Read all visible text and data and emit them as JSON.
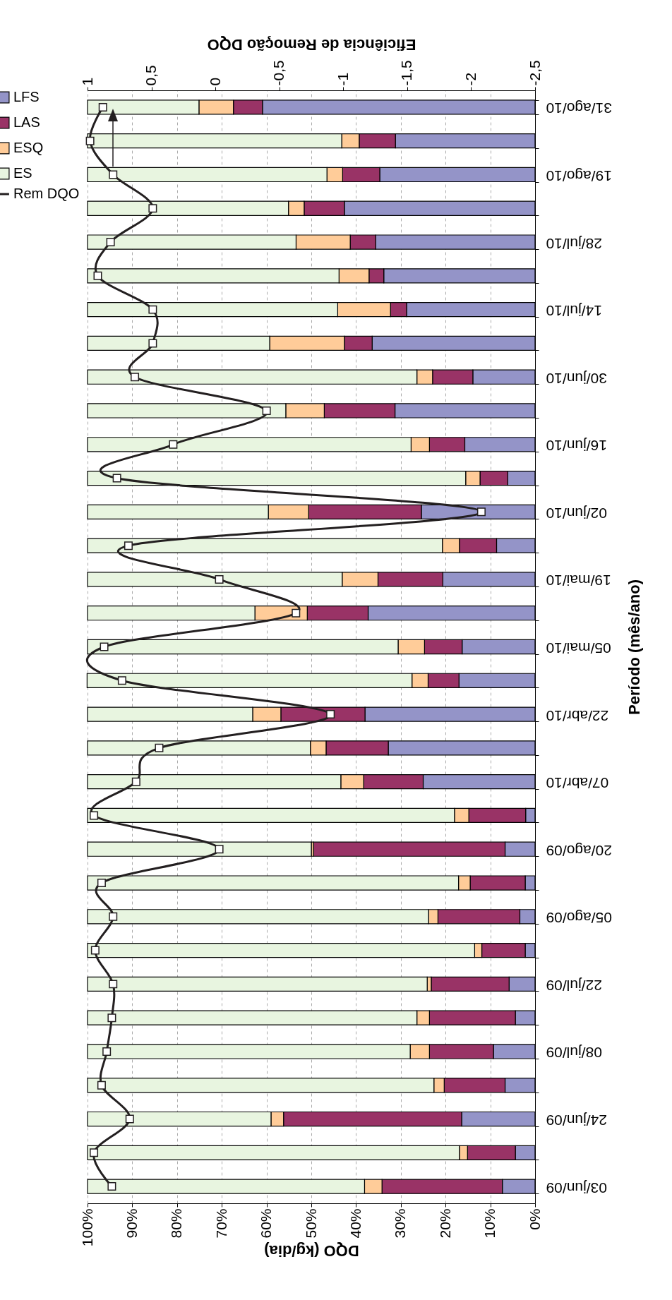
{
  "chart_data": {
    "type": "bar",
    "orientation": "horizontal",
    "xlabel": "DQO (kg/dia)",
    "x2label": "Eficiência de Remoção DQO",
    "ylabel": "Período (mês/ano)",
    "categories": [
      "31/ago/10",
      null,
      "19/ago/10",
      null,
      "28/jul/10",
      null,
      "14/jul/10",
      null,
      "30/jun/10",
      null,
      "16/jun/10",
      null,
      "02/jun/10",
      null,
      "19/mai/10",
      null,
      "05/mai/10",
      null,
      "22/abr/10",
      null,
      "07/abr/10",
      null,
      "20/ago/09",
      null,
      "05/ago/09",
      null,
      "22/jul/09",
      null,
      "08/jul/09",
      null,
      "24/jun/09",
      null,
      "03/jun/09"
    ],
    "stacked": true,
    "series": [
      {
        "name": "LFS",
        "color": "#9494c8",
        "values": [
          60.9,
          31.2,
          34.7,
          42.6,
          35.6,
          33.8,
          28.7,
          36.4,
          13.9,
          31.3,
          15.7,
          6.1,
          25.4,
          8.6,
          20.6,
          37.3,
          16.3,
          17.0,
          38.0,
          32.8,
          25.0,
          2.1,
          6.7,
          2.2,
          3.4,
          2.2,
          5.8,
          4.4,
          9.3,
          6.7,
          16.4,
          4.4,
          7.3
        ]
      },
      {
        "name": "LAS",
        "color": "#993366",
        "values": [
          6.5,
          8.1,
          8.3,
          9.0,
          5.7,
          3.3,
          3.6,
          6.2,
          9.0,
          15.8,
          7.9,
          6.2,
          25.2,
          8.3,
          14.5,
          13.6,
          8.4,
          6.9,
          18.8,
          13.9,
          13.3,
          12.7,
          42.8,
          12.3,
          18.3,
          9.7,
          17.4,
          19.2,
          14.3,
          13.6,
          39.8,
          10.7,
          26.9
        ]
      },
      {
        "name": "ESQ",
        "color": "#ffcc99",
        "values": [
          7.7,
          3.9,
          3.5,
          3.5,
          12.1,
          6.7,
          11.8,
          16.7,
          3.5,
          8.6,
          4.1,
          3.2,
          9.0,
          3.8,
          8.0,
          11.7,
          5.9,
          3.6,
          6.3,
          3.5,
          5.1,
          3.2,
          0.5,
          2.6,
          2.1,
          1.6,
          0.9,
          2.8,
          4.3,
          2.3,
          2.8,
          1.8,
          3.9
        ]
      },
      {
        "name": "ES",
        "color": "#e8f5e0",
        "values": [
          24.9,
          56.8,
          53.5,
          44.9,
          46.6,
          56.2,
          55.9,
          40.7,
          73.6,
          44.3,
          72.3,
          84.5,
          40.4,
          79.3,
          56.9,
          37.4,
          69.4,
          72.6,
          36.9,
          49.8,
          56.6,
          82.0,
          50.0,
          82.9,
          76.2,
          86.5,
          75.9,
          73.6,
          72.1,
          77.4,
          41.0,
          83.1,
          61.9
        ]
      },
      {
        "name": "Rem DQO",
        "type": "line",
        "axis": "x2",
        "color": "#231f20",
        "marker": "square",
        "values": [
          0.88,
          0.98,
          0.8,
          0.49,
          0.82,
          0.92,
          0.49,
          0.49,
          0.63,
          -0.4,
          0.33,
          0.77,
          -2.08,
          0.68,
          -0.03,
          -0.63,
          0.87,
          0.73,
          -0.9,
          0.44,
          0.62,
          0.95,
          -0.03,
          0.89,
          0.8,
          0.94,
          0.8,
          0.81,
          0.85,
          0.89,
          0.67,
          0.95,
          0.81
        ]
      }
    ],
    "xlim": [
      100,
      0
    ],
    "xticks": [
      {
        "value": 0,
        "label": "0%"
      },
      {
        "value": 10,
        "label": "10%"
      },
      {
        "value": 20,
        "label": "20%"
      },
      {
        "value": 30,
        "label": "30%"
      },
      {
        "value": 40,
        "label": "40%"
      },
      {
        "value": 50,
        "label": "50%"
      },
      {
        "value": 60,
        "label": "60%"
      },
      {
        "value": 70,
        "label": "70%"
      },
      {
        "value": 80,
        "label": "80%"
      },
      {
        "value": 90,
        "label": "90%"
      },
      {
        "value": 100,
        "label": "100%"
      }
    ],
    "x2lim": [
      1,
      -2.5
    ],
    "x2ticks": [
      {
        "value": -2.5,
        "label": "-2,5"
      },
      -2,
      {
        "value": -1.5,
        "label": "-1,5"
      },
      -1,
      {
        "value": -0.5,
        "label": "-0,5"
      },
      0,
      {
        "value": 0.5,
        "label": "0,5"
      },
      1
    ],
    "grid": "x",
    "legend": "left"
  }
}
